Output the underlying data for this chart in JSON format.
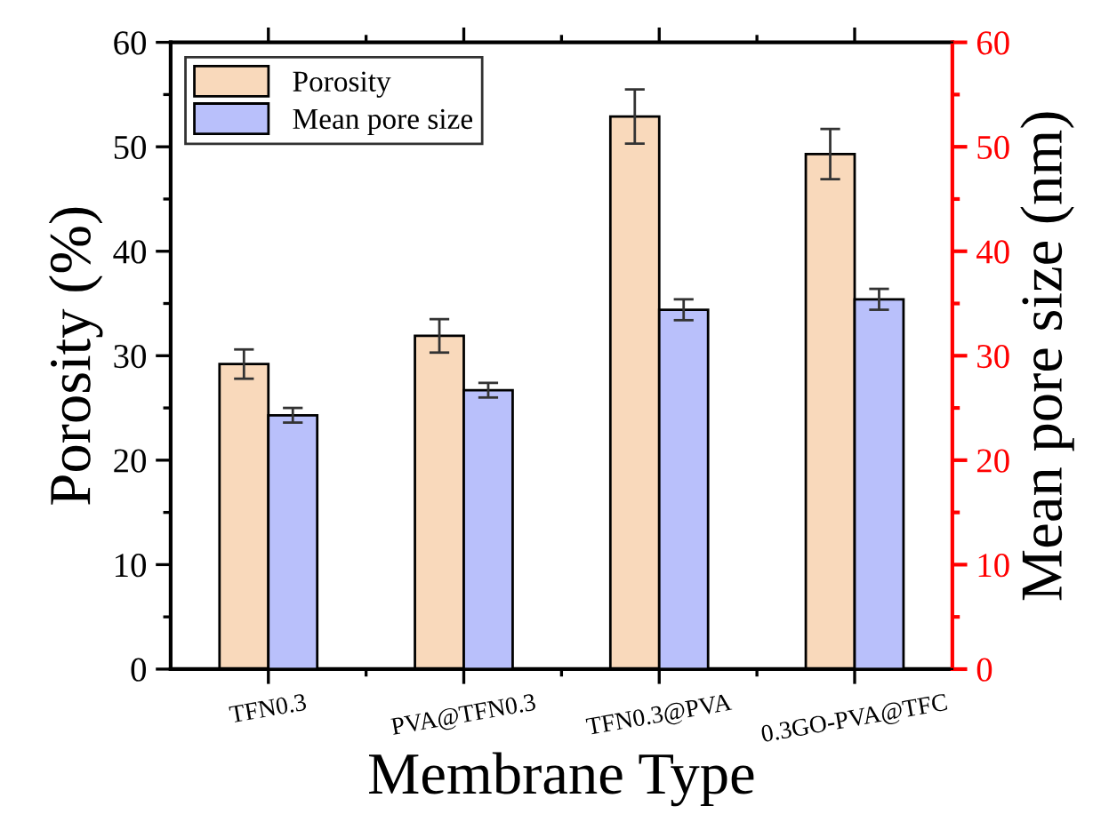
{
  "chart_data": {
    "type": "bar",
    "xlabel": "Membrane Type",
    "ylabel": "Porosity (%)",
    "y2label": "Mean pore size (nm)",
    "categories": [
      "TFN0.3",
      "PVA@TFN0.3",
      "TFN0.3@PVA",
      "0.3GO-PVA@TFC"
    ],
    "series": [
      {
        "name": "Porosity",
        "color": "#f9d9bb",
        "values": [
          29.2,
          31.9,
          52.9,
          49.3
        ],
        "errors": [
          1.4,
          1.6,
          2.6,
          2.4
        ]
      },
      {
        "name": "Mean pore size",
        "color": "#b9c0fb",
        "axis": "y2",
        "values": [
          24.3,
          26.7,
          34.4,
          35.4
        ],
        "errors": [
          0.7,
          0.7,
          1.0,
          1.0
        ]
      }
    ],
    "ylim": [
      0,
      60
    ],
    "yticks": [
      0,
      10,
      20,
      30,
      40,
      50,
      60
    ],
    "y2lim": [
      0,
      60
    ],
    "y2ticks": [
      0,
      10,
      20,
      30,
      40,
      50,
      60
    ],
    "legend": "top left",
    "grid": false
  }
}
